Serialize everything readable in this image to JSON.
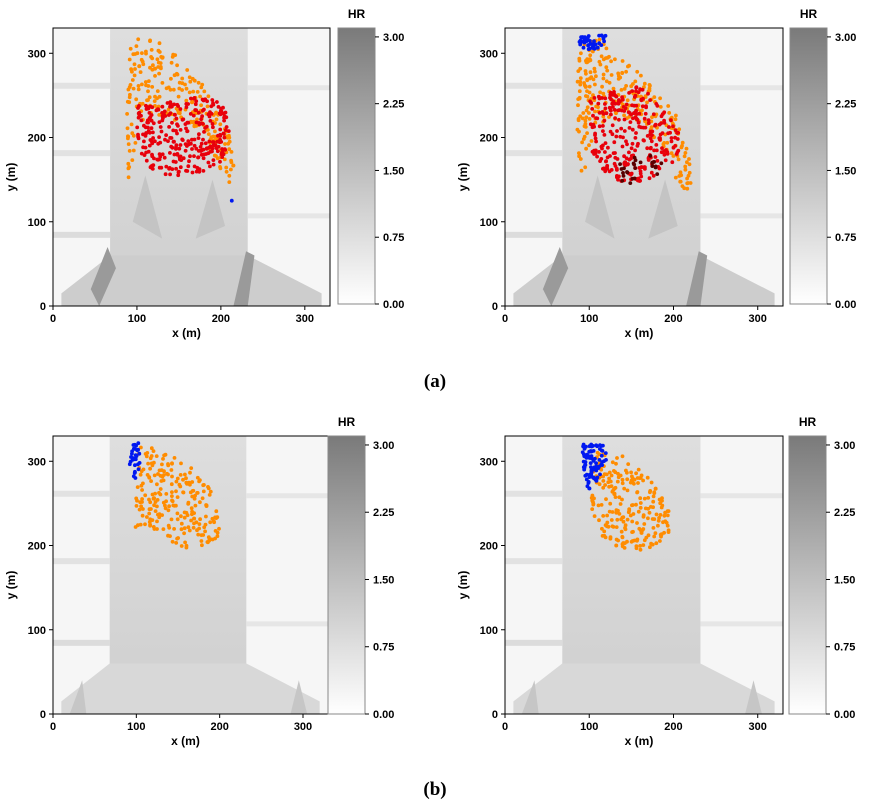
{
  "figure": {
    "panel_labels": [
      "(a)",
      "(b)"
    ]
  },
  "chart_data": [
    {
      "type": "scatter",
      "panel": "(a)",
      "subplot": "left",
      "xlabel": "x (m)",
      "ylabel": "y (m)",
      "xlim": [
        0,
        330
      ],
      "ylim": [
        0,
        330
      ],
      "xticks": [
        0,
        100,
        200,
        300
      ],
      "yticks": [
        0,
        100,
        200,
        300
      ],
      "colorbar": {
        "title": "HR",
        "ticks": [
          "0.00",
          "0.75",
          "1.50",
          "2.25",
          "3.00"
        ],
        "range": [
          0,
          3.1
        ]
      },
      "colors": {
        "orange": "#ff8c00",
        "red": "#e8000b",
        "blue": "#0018f0"
      },
      "clusters": [
        {
          "color": "orange",
          "n": 240,
          "polygon": [
            [
              92,
              318
            ],
            [
              115,
              320
            ],
            [
              140,
              305
            ],
            [
              165,
              280
            ],
            [
              185,
              255
            ],
            [
              198,
              235
            ],
            [
              210,
              205
            ],
            [
              220,
              170
            ],
            [
              215,
              145
            ],
            [
              200,
              150
            ],
            [
              190,
              175
            ],
            [
              180,
              200
            ],
            [
              160,
              215
            ],
            [
              130,
              225
            ],
            [
              105,
              215
            ],
            [
              95,
              175
            ],
            [
              90,
              145
            ],
            [
              88,
              220
            ],
            [
              90,
              300
            ]
          ]
        },
        {
          "color": "red",
          "n": 300,
          "polygon": [
            [
              100,
              240
            ],
            [
              130,
              242
            ],
            [
              160,
              248
            ],
            [
              185,
              250
            ],
            [
              205,
              235
            ],
            [
              210,
              205
            ],
            [
              205,
              175
            ],
            [
              185,
              160
            ],
            [
              150,
              152
            ],
            [
              120,
              160
            ],
            [
              105,
              175
            ],
            [
              98,
              210
            ]
          ]
        }
      ],
      "blue_points": [
        [
          213,
          125
        ]
      ]
    },
    {
      "type": "scatter",
      "panel": "(a)",
      "subplot": "right",
      "xlabel": "x (m)",
      "ylabel": "y (m)",
      "xlim": [
        0,
        330
      ],
      "ylim": [
        0,
        330
      ],
      "xticks": [
        0,
        100,
        200,
        300
      ],
      "yticks": [
        0,
        100,
        200,
        300
      ],
      "colorbar": {
        "title": "HR",
        "ticks": [
          "0.00",
          "0.75",
          "1.50",
          "2.25",
          "3.00"
        ],
        "range": [
          0,
          3.1
        ]
      },
      "colors": {
        "orange": "#ff8c00",
        "red": "#e8000b",
        "blue": "#0018f0",
        "darkred": "#5a0000"
      },
      "clusters": [
        {
          "color": "orange",
          "n": 260,
          "polygon": [
            [
              88,
              310
            ],
            [
              110,
              318
            ],
            [
              135,
              300
            ],
            [
              160,
              275
            ],
            [
              185,
              250
            ],
            [
              205,
              225
            ],
            [
              218,
              195
            ],
            [
              222,
              150
            ],
            [
              215,
              125
            ],
            [
              205,
              145
            ],
            [
              195,
              175
            ],
            [
              170,
              210
            ],
            [
              140,
              225
            ],
            [
              110,
              215
            ],
            [
              100,
              175
            ],
            [
              88,
              140
            ],
            [
              85,
              220
            ],
            [
              86,
              290
            ]
          ]
        },
        {
          "color": "red",
          "n": 280,
          "polygon": [
            [
              100,
              245
            ],
            [
              130,
              258
            ],
            [
              160,
              260
            ],
            [
              185,
              240
            ],
            [
              205,
              215
            ],
            [
              208,
              185
            ],
            [
              195,
              165
            ],
            [
              170,
              150
            ],
            [
              140,
              145
            ],
            [
              115,
              160
            ],
            [
              102,
              185
            ],
            [
              98,
              215
            ]
          ]
        },
        {
          "color": "blue",
          "n": 45,
          "polygon": [
            [
              88,
              320
            ],
            [
              120,
              322
            ],
            [
              118,
              308
            ],
            [
              100,
              302
            ],
            [
              88,
              310
            ]
          ]
        },
        {
          "color": "darkred",
          "n": 25,
          "polygon": [
            [
              132,
              172
            ],
            [
              150,
              180
            ],
            [
              175,
              185
            ],
            [
              190,
              175
            ],
            [
              180,
              155
            ],
            [
              155,
              140
            ],
            [
              135,
              150
            ]
          ]
        }
      ]
    },
    {
      "type": "scatter",
      "panel": "(b)",
      "subplot": "left",
      "xlabel": "x (m)",
      "ylabel": "y (m)",
      "xlim": [
        0,
        330
      ],
      "ylim": [
        0,
        330
      ],
      "xticks": [
        0,
        100,
        200,
        300
      ],
      "yticks": [
        0,
        100,
        200,
        300
      ],
      "colorbar": {
        "title": "HR",
        "ticks": [
          "0.00",
          "0.75",
          "1.50",
          "2.25",
          "3.00"
        ],
        "range": [
          0,
          3.1
        ]
      },
      "colors": {
        "orange": "#ff8c00",
        "blue": "#0018f0"
      },
      "clusters": [
        {
          "color": "orange",
          "n": 230,
          "polygon": [
            [
              100,
              320
            ],
            [
              120,
              318
            ],
            [
              145,
              305
            ],
            [
              170,
              290
            ],
            [
              190,
              265
            ],
            [
              200,
              230
            ],
            [
              200,
              205
            ],
            [
              180,
              200
            ],
            [
              155,
              195
            ],
            [
              130,
              215
            ],
            [
              110,
              225
            ],
            [
              98,
              220
            ],
            [
              100,
              260
            ],
            [
              102,
              300
            ]
          ]
        },
        {
          "color": "blue",
          "n": 30,
          "polygon": [
            [
              92,
              322
            ],
            [
              104,
              322
            ],
            [
              104,
              295
            ],
            [
              98,
              275
            ],
            [
              92,
              290
            ]
          ]
        }
      ]
    },
    {
      "type": "scatter",
      "panel": "(b)",
      "subplot": "right",
      "xlabel": "x (m)",
      "ylabel": "y (m)",
      "xlim": [
        0,
        330
      ],
      "ylim": [
        0,
        330
      ],
      "xticks": [
        0,
        100,
        200,
        300
      ],
      "yticks": [
        0,
        100,
        200,
        300
      ],
      "colorbar": {
        "title": "HR",
        "ticks": [
          "0.00",
          "0.75",
          "1.50",
          "2.25",
          "3.00"
        ],
        "range": [
          0,
          3.1
        ]
      },
      "colors": {
        "orange": "#ff8c00",
        "blue": "#0018f0"
      },
      "clusters": [
        {
          "color": "orange",
          "n": 230,
          "polygon": [
            [
              110,
              318
            ],
            [
              125,
              315
            ],
            [
              150,
              300
            ],
            [
              175,
              275
            ],
            [
              195,
              245
            ],
            [
              200,
              210
            ],
            [
              185,
              200
            ],
            [
              160,
              190
            ],
            [
              130,
              200
            ],
            [
              110,
              215
            ],
            [
              100,
              245
            ],
            [
              105,
              290
            ]
          ]
        },
        {
          "color": "blue",
          "n": 85,
          "polygon": [
            [
              92,
              320
            ],
            [
              122,
              320
            ],
            [
              120,
              300
            ],
            [
              110,
              275
            ],
            [
              100,
              265
            ],
            [
              94,
              280
            ],
            [
              92,
              305
            ]
          ]
        }
      ]
    }
  ]
}
